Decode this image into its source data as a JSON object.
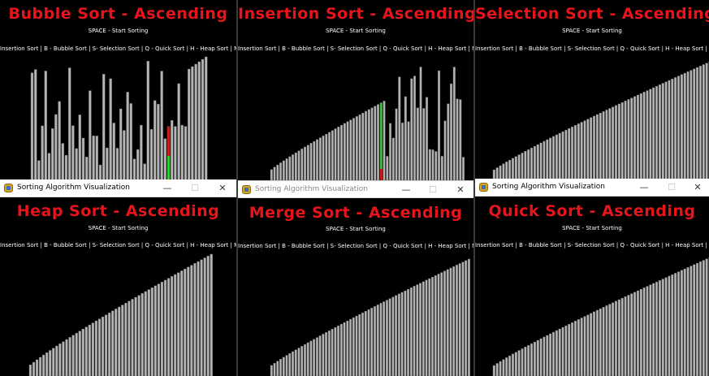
{
  "panels": [
    {
      "title": "Bubble Sort - Ascending",
      "subtitle": "SPACE - Start Sorting",
      "keys": "Insertion Sort | B - Bubble Sort | S- Selection Sort | Q - Quick Sort | H - Heap Sort | M - Merge Sort",
      "state": "in-progress",
      "highlight": {
        "red": [
          40
        ],
        "green": [
          40
        ]
      }
    },
    {
      "title": "Insertion Sort - Ascending",
      "subtitle": "SPACE - Start Sorting",
      "keys": "Insertion Sort | B - Bubble Sort | S- Selection Sort | Q - Quick Sort | H - Heap Sort | M - Merge Sort",
      "state": "in-progress",
      "highlight": {
        "green": [
          36
        ],
        "red": [
          36
        ]
      }
    },
    {
      "title": "Selection Sort - Ascending",
      "subtitle": "SPACE - Start Sorting",
      "keys": "Insertion Sort | B - Bubble Sort | S- Selection Sort | Q - Quick Sort | H - Heap Sort | M - Merge Sort",
      "state": "sorted"
    },
    {
      "title": "Heap Sort - Ascending",
      "subtitle": "SPACE - Start Sorting",
      "keys": "Insertion Sort | B - Bubble Sort | S- Selection Sort | Q - Quick Sort | H - Heap Sort | M - Merge Sort",
      "state": "sorted"
    },
    {
      "title": "Merge Sort - Ascending",
      "subtitle": "SPACE - Start Sorting",
      "keys": "Insertion Sort | B - Bubble Sort | S- Selection Sort | Q - Quick Sort | H - Heap Sort | M - Merge Sort",
      "state": "sorted"
    },
    {
      "title": "Quick Sort - Ascending",
      "subtitle": "SPACE - Start Sorting",
      "keys": "Insertion Sort | B - Bubble Sort | S- Selection Sort | Q - Quick Sort | H - Heap Sort | M - Merge Sort",
      "state": "sorted"
    }
  ],
  "windows": [
    {
      "title": "Sorting Algorithm Visualization",
      "minimize": "—",
      "maximize": "☐",
      "close": "✕"
    },
    {
      "title": "Sorting Algorithm Visualization",
      "minimize": "—",
      "maximize": "☐",
      "close": "✕"
    },
    {
      "title": "Sorting Algorithm Visualization",
      "minimize": "—",
      "maximize": "☐",
      "close": "✕"
    }
  ],
  "colors": {
    "title": "#e8141c",
    "bar": "#b4b4b4",
    "bar_edge": "#6e6e6e",
    "compare_red": "#e01010",
    "compare_green": "#2fd02f",
    "background": "#000000"
  }
}
